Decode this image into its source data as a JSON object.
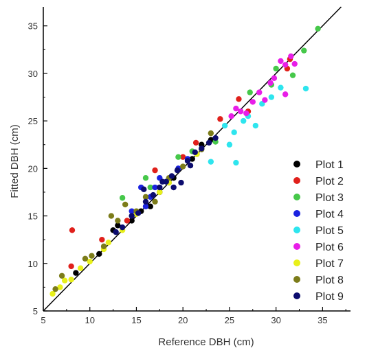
{
  "chart_data": {
    "type": "scatter",
    "title": "",
    "xlabel": "Reference DBH (cm)",
    "ylabel": "Fitted DBH (cm)",
    "xlim": [
      5,
      38
    ],
    "ylim": [
      5,
      37
    ],
    "xticks": [
      5,
      10,
      15,
      20,
      25,
      30,
      35
    ],
    "yticks": [
      5,
      10,
      15,
      20,
      25,
      30,
      35
    ],
    "legend_position": "bottom-right",
    "reference_line": {
      "type": "1:1",
      "color": "#000000"
    },
    "grid": false,
    "series": [
      {
        "name": "Plot 1",
        "color": "#000000",
        "points": [
          [
            8.5,
            9.0
          ],
          [
            11.0,
            11.0
          ],
          [
            12.5,
            13.5
          ],
          [
            13.0,
            14.0
          ],
          [
            14.5,
            14.5
          ],
          [
            15.5,
            15.5
          ],
          [
            16.5,
            16.0
          ],
          [
            17.5,
            17.5
          ],
          [
            19.0,
            19.0
          ],
          [
            21.0,
            21.0
          ],
          [
            22.0,
            22.5
          ],
          [
            23.0,
            23.0
          ]
        ]
      },
      {
        "name": "Plot 2",
        "color": "#e0201b",
        "points": [
          [
            8.0,
            9.7
          ],
          [
            8.1,
            13.5
          ],
          [
            11.3,
            12.5
          ],
          [
            14.0,
            14.5
          ],
          [
            17.0,
            19.8
          ],
          [
            20.0,
            21.2
          ],
          [
            21.4,
            22.7
          ],
          [
            24.0,
            25.2
          ],
          [
            26.0,
            27.3
          ],
          [
            31.2,
            30.5
          ],
          [
            31.5,
            31.5
          ],
          [
            27.0,
            26.0
          ]
        ]
      },
      {
        "name": "Plot 3",
        "color": "#46c84a",
        "points": [
          [
            13.5,
            16.9
          ],
          [
            16.0,
            19.0
          ],
          [
            19.5,
            21.2
          ],
          [
            21.0,
            21.8
          ],
          [
            23.5,
            22.8
          ],
          [
            27.2,
            28.0
          ],
          [
            29.5,
            28.8
          ],
          [
            31.8,
            29.8
          ],
          [
            33.0,
            32.4
          ],
          [
            34.5,
            34.7
          ],
          [
            30.0,
            30.5
          ],
          [
            16.5,
            18.0
          ]
        ]
      },
      {
        "name": "Plot 4",
        "color": "#1a22e0",
        "points": [
          [
            14.5,
            15.5
          ],
          [
            15.5,
            18.0
          ],
          [
            16.5,
            17.0
          ],
          [
            17.0,
            18.0
          ],
          [
            17.5,
            19.0
          ],
          [
            18.5,
            18.5
          ],
          [
            19.5,
            20.0
          ],
          [
            20.5,
            21.0
          ],
          [
            21.5,
            21.5
          ],
          [
            16.0,
            16.0
          ]
        ]
      },
      {
        "name": "Plot 5",
        "color": "#2ee5ee",
        "points": [
          [
            23.0,
            20.7
          ],
          [
            25.7,
            20.6
          ],
          [
            25.5,
            23.8
          ],
          [
            26.5,
            25.0
          ],
          [
            27.0,
            25.5
          ],
          [
            27.8,
            24.5
          ],
          [
            28.5,
            26.8
          ],
          [
            29.5,
            27.5
          ],
          [
            30.5,
            28.5
          ],
          [
            33.2,
            28.4
          ],
          [
            25.0,
            22.5
          ],
          [
            24.5,
            24.5
          ]
        ]
      },
      {
        "name": "Plot 6",
        "color": "#e81ee8",
        "points": [
          [
            25.2,
            25.5
          ],
          [
            25.7,
            26.3
          ],
          [
            26.2,
            26.0
          ],
          [
            26.8,
            25.8
          ],
          [
            27.5,
            27.0
          ],
          [
            28.2,
            28.0
          ],
          [
            28.8,
            27.2
          ],
          [
            29.4,
            29.0
          ],
          [
            29.8,
            29.5
          ],
          [
            30.5,
            31.3
          ],
          [
            31.0,
            30.9
          ],
          [
            31.6,
            31.8
          ],
          [
            32.0,
            31.0
          ],
          [
            31.0,
            27.8
          ]
        ]
      },
      {
        "name": "Plot 7",
        "color": "#e8f01a",
        "points": [
          [
            6.0,
            6.8
          ],
          [
            6.8,
            7.5
          ],
          [
            7.3,
            8.2
          ],
          [
            8.0,
            8.3
          ],
          [
            9.0,
            9.5
          ],
          [
            10.0,
            10.2
          ],
          [
            11.5,
            11.5
          ],
          [
            12.0,
            12.2
          ],
          [
            13.5,
            13.5
          ],
          [
            15.0,
            15.2
          ],
          [
            17.5,
            17.5
          ],
          [
            18.5,
            18.5
          ],
          [
            21.5,
            21.5
          ]
        ]
      },
      {
        "name": "Plot 8",
        "color": "#7c7c1a",
        "points": [
          [
            6.3,
            7.3
          ],
          [
            7.0,
            8.7
          ],
          [
            9.5,
            10.5
          ],
          [
            10.2,
            10.8
          ],
          [
            11.5,
            11.8
          ],
          [
            12.3,
            15.0
          ],
          [
            13.0,
            14.5
          ],
          [
            13.8,
            16.2
          ],
          [
            15.0,
            15.5
          ],
          [
            16.0,
            17.0
          ],
          [
            17.0,
            16.5
          ],
          [
            18.5,
            19.0
          ],
          [
            20.0,
            20.2
          ],
          [
            22.0,
            22.0
          ],
          [
            23.0,
            23.7
          ]
        ]
      },
      {
        "name": "Plot 9",
        "color": "#0c0c6e",
        "points": [
          [
            12.8,
            13.3
          ],
          [
            13.5,
            13.8
          ],
          [
            14.5,
            15.0
          ],
          [
            15.2,
            15.3
          ],
          [
            16.0,
            16.5
          ],
          [
            16.8,
            17.2
          ],
          [
            17.5,
            18.0
          ],
          [
            18.2,
            18.6
          ],
          [
            18.8,
            19.2
          ],
          [
            19.4,
            19.8
          ],
          [
            19.8,
            18.5
          ],
          [
            20.5,
            20.8
          ],
          [
            21.3,
            21.7
          ],
          [
            22.0,
            22.1
          ],
          [
            22.8,
            22.7
          ],
          [
            23.5,
            23.2
          ],
          [
            17.8,
            18.6
          ],
          [
            15.8,
            17.8
          ],
          [
            19.0,
            18.0
          ],
          [
            20.8,
            20.3
          ]
        ]
      }
    ]
  }
}
